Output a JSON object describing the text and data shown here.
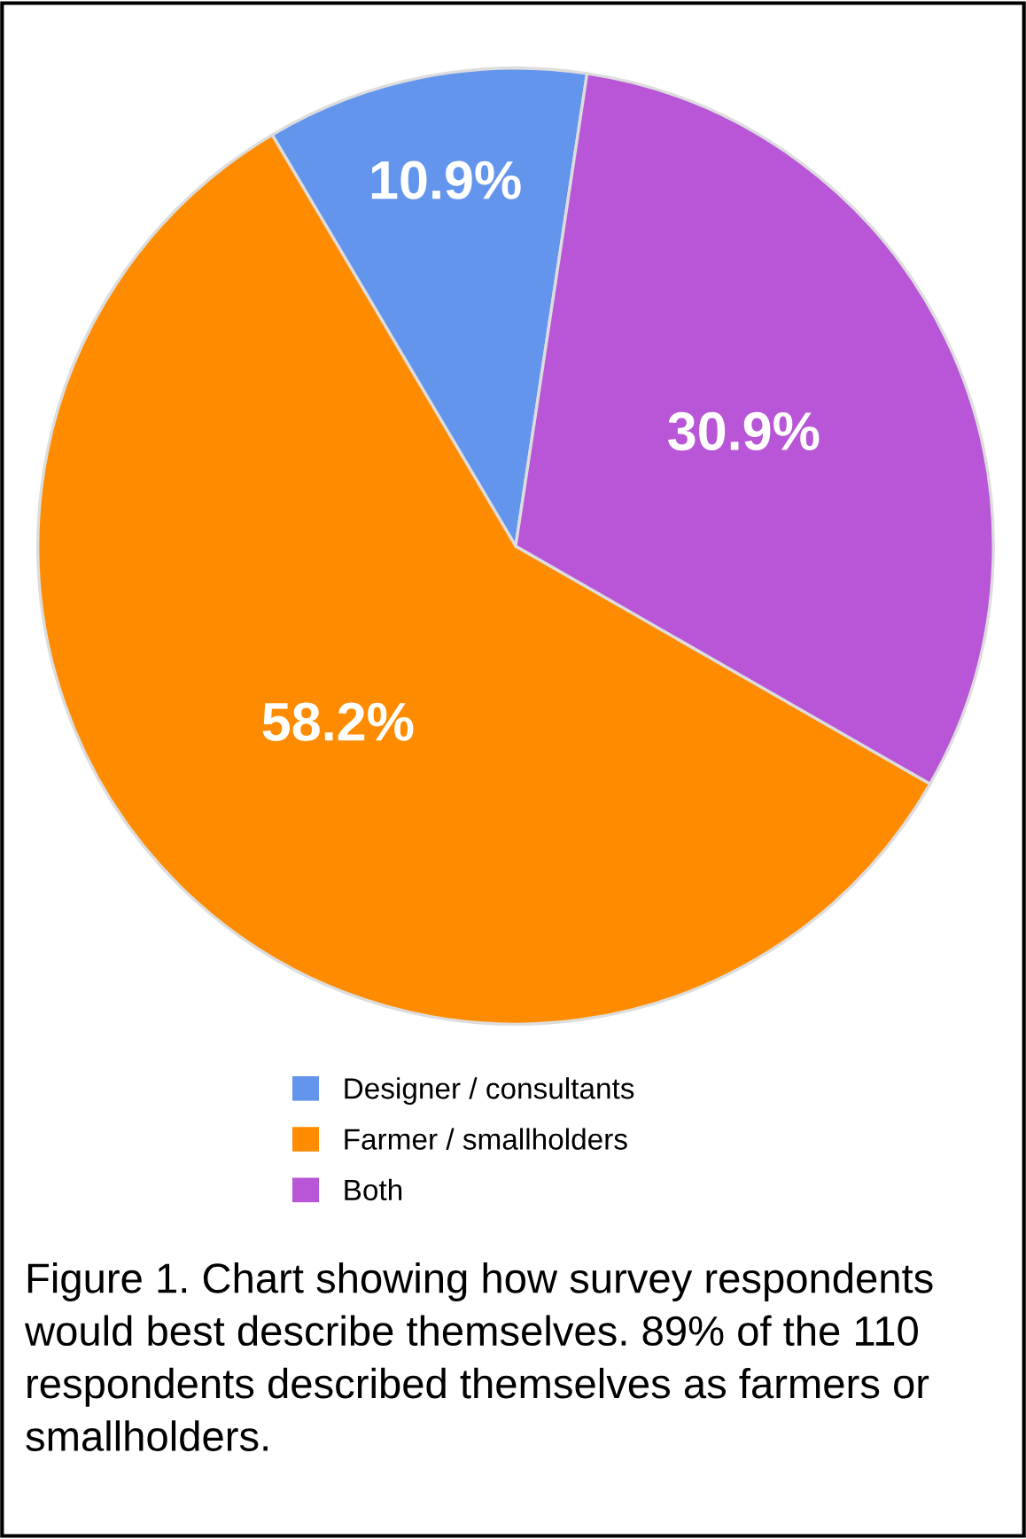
{
  "chart_data": {
    "type": "pie",
    "categories": [
      "Designer / consultants",
      "Farmer / smallholders",
      "Both"
    ],
    "values": [
      10.9,
      58.2,
      30.9
    ],
    "colors": [
      "#6495ed",
      "#ff8c00",
      "#b856d7"
    ],
    "value_labels": [
      "10.9%",
      "58.2%",
      "30.9%"
    ],
    "legend": "bottom",
    "annotations": [
      "Figure 1. Chart showing how survey respondents would best describe themselves. 89% of the 110 respondents described themselves as farmers or smallholders."
    ]
  }
}
